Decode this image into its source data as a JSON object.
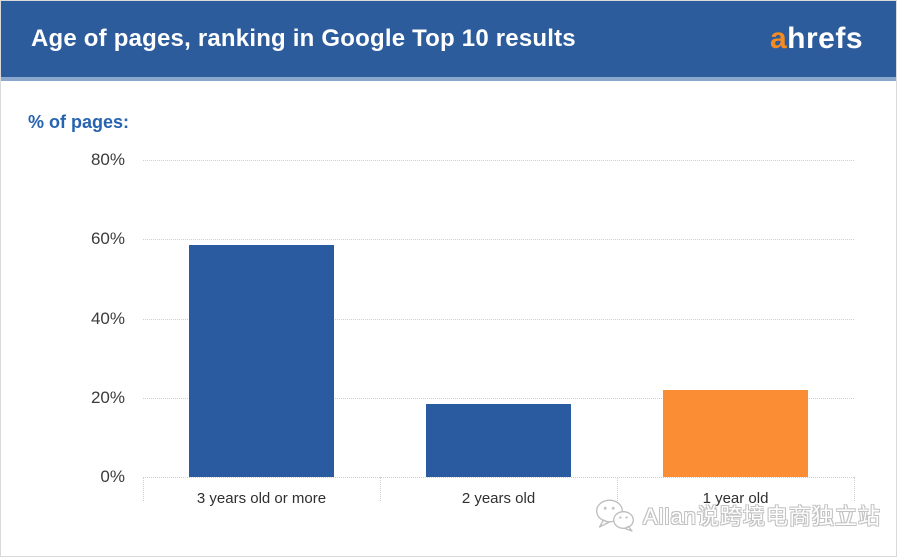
{
  "header": {
    "title": "Age of pages, ranking in Google Top 10 results",
    "logo": {
      "prefix": "a",
      "rest": "hrefs"
    },
    "background": "#2d5c9c",
    "accent_strip": "#8aa7cd",
    "logo_accent": "#f68b1f"
  },
  "chart_data": {
    "type": "bar",
    "title": "Age of pages, ranking in Google Top 10 results",
    "axis_title": "% of pages:",
    "ylabel": "% of pages",
    "xlabel": "",
    "categories": [
      "3 years old or more",
      "2 years old",
      "1 year old"
    ],
    "values": [
      58.5,
      18.5,
      22
    ],
    "bar_colors": [
      "#2a5a9f",
      "#2a5a9f",
      "#fb8d35"
    ],
    "yticks": [
      0,
      20,
      40,
      60,
      80
    ],
    "ytick_labels": [
      "0%",
      "20%",
      "40%",
      "60%",
      "80%"
    ],
    "ylim": [
      0,
      80
    ],
    "grid": "horizontal dotted",
    "legend": "none"
  },
  "watermark": {
    "icon": "wechat-icon",
    "text": "Allan说跨境电商独立站"
  }
}
